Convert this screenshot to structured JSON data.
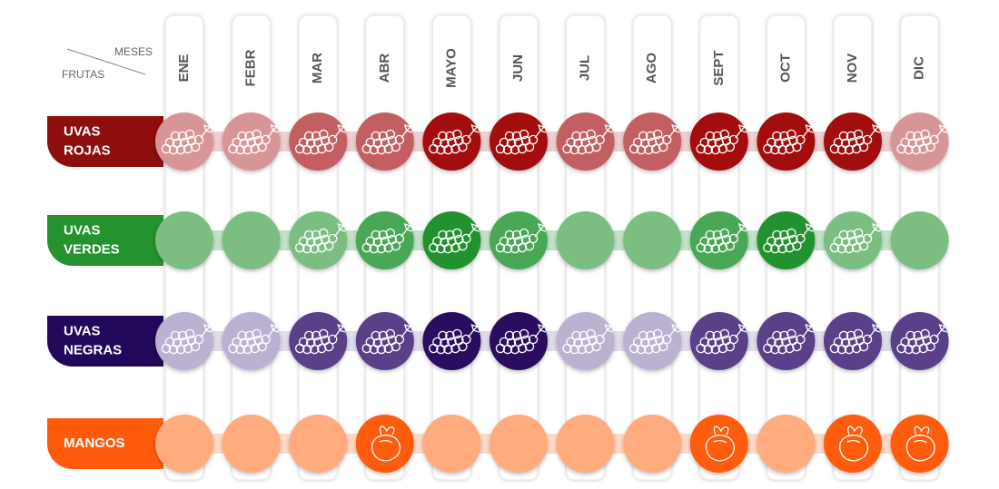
{
  "chart_data": {
    "type": "table",
    "corner": {
      "column_header": "MESES",
      "row_header": "FRUTAS"
    },
    "months": [
      "ENE",
      "FEBR",
      "MAR",
      "ABR",
      "MAYO",
      "JUN",
      "JUL",
      "AGO",
      "SEPT",
      "OCT",
      "NOV",
      "DIC"
    ],
    "rows": [
      {
        "label": [
          "UVAS",
          "ROJAS"
        ],
        "icon": "grapes-icon",
        "colors": [
          "#a30a10",
          "#c35f64",
          "#d79597"
        ],
        "levels": [
          2,
          2,
          1,
          1,
          0,
          0,
          1,
          1,
          0,
          0,
          0,
          2
        ],
        "icon_visible": [
          true,
          true,
          true,
          true,
          true,
          true,
          true,
          true,
          true,
          true,
          true,
          true
        ]
      },
      {
        "label": [
          "UVAS",
          "VERDES"
        ],
        "icon": "grapes-icon",
        "colors": [
          "#23922f",
          "#4aa856",
          "#7bbe82"
        ],
        "levels": [
          2,
          2,
          2,
          1,
          0,
          1,
          2,
          2,
          1,
          0,
          2,
          2
        ],
        "icon_visible": [
          false,
          false,
          true,
          true,
          true,
          true,
          false,
          false,
          true,
          true,
          true,
          false
        ]
      },
      {
        "label": [
          "UVAS",
          "NEGRAS"
        ],
        "icon": "grapes-icon",
        "colors": [
          "#2c0d5f",
          "#5a3f89",
          "#bbb1d1"
        ],
        "levels": [
          2,
          2,
          1,
          1,
          0,
          0,
          2,
          2,
          1,
          1,
          1,
          1
        ],
        "icon_visible": [
          true,
          true,
          true,
          true,
          true,
          true,
          true,
          true,
          true,
          true,
          true,
          true
        ]
      },
      {
        "label": [
          "MANGOS"
        ],
        "icon": "mango-icon",
        "colors": [
          "#ff5b0a",
          "#ff5b0a",
          "#ffab7e"
        ],
        "levels": [
          2,
          2,
          2,
          0,
          2,
          2,
          2,
          2,
          0,
          2,
          0,
          0
        ],
        "icon_visible": [
          false,
          false,
          false,
          true,
          false,
          false,
          false,
          false,
          true,
          false,
          true,
          true
        ]
      }
    ],
    "label_colors": [
      "#8e0d0d",
      "#23922f",
      "#22085a",
      "#ff5b0a"
    ]
  }
}
